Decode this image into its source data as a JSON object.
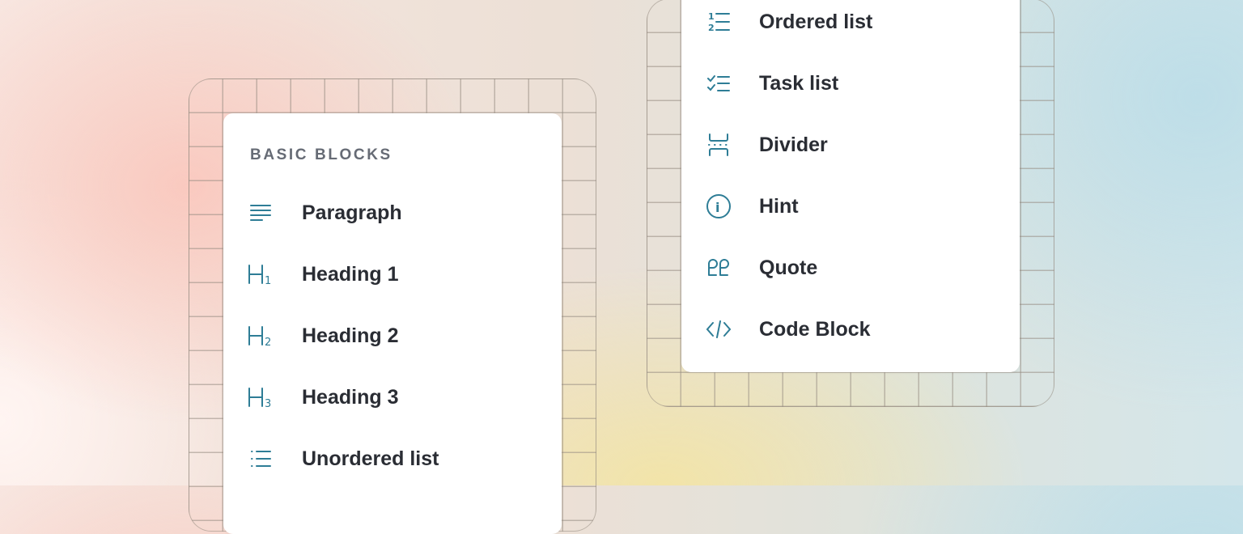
{
  "colors": {
    "accent": "#2e7d96",
    "text": "#2a2d34",
    "header": "#666b75"
  },
  "left_menu": {
    "header": "BASIC BLOCKS",
    "items": [
      {
        "label": "Paragraph",
        "icon": "paragraph-icon"
      },
      {
        "label": "Heading 1",
        "icon": "heading-1-icon",
        "glyph": "H",
        "sub": "1"
      },
      {
        "label": "Heading 2",
        "icon": "heading-2-icon",
        "glyph": "H",
        "sub": "2"
      },
      {
        "label": "Heading 3",
        "icon": "heading-3-icon",
        "glyph": "H",
        "sub": "3"
      },
      {
        "label": "Unordered list",
        "icon": "unordered-list-icon"
      }
    ]
  },
  "right_menu": {
    "items": [
      {
        "label": "Ordered list",
        "icon": "ordered-list-icon",
        "glyph1": "1",
        "glyph2": "2"
      },
      {
        "label": "Task list",
        "icon": "task-list-icon"
      },
      {
        "label": "Divider",
        "icon": "divider-icon"
      },
      {
        "label": "Hint",
        "icon": "info-icon",
        "glyph": "i"
      },
      {
        "label": "Quote",
        "icon": "quote-icon"
      },
      {
        "label": "Code Block",
        "icon": "code-icon"
      }
    ]
  }
}
